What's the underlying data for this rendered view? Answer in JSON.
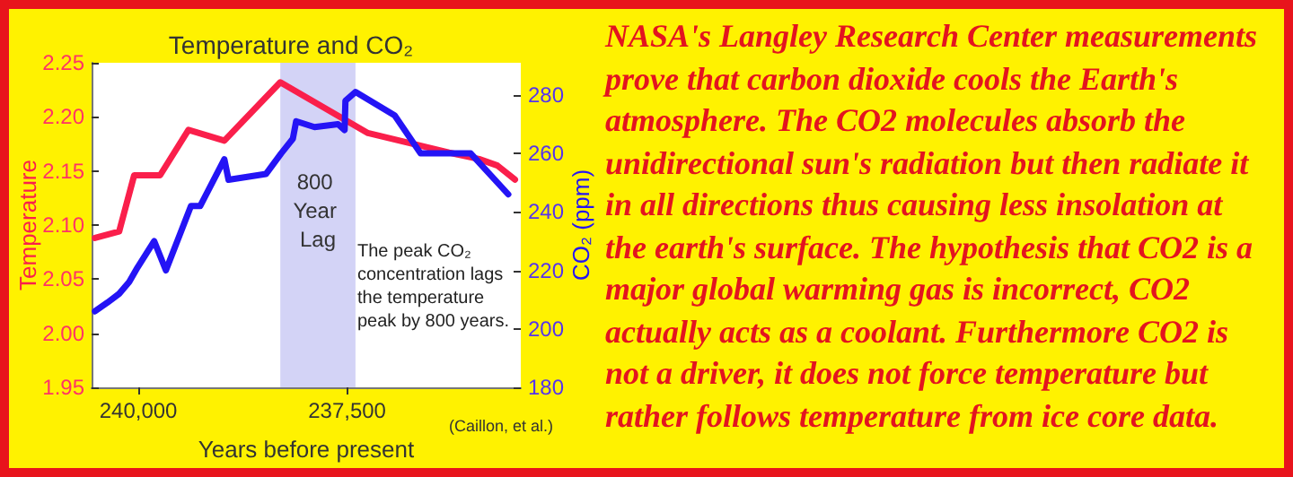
{
  "chart_data": {
    "type": "line",
    "title": "Temperature and CO₂",
    "xlabel": "Years before present",
    "ylabel": "Temperature",
    "y2label": "CO₂ (ppm)",
    "xlim": [
      240560,
      235420
    ],
    "xticks": [
      {
        "value": 240000,
        "label": "240,000"
      },
      {
        "value": 237500,
        "label": "237,500"
      }
    ],
    "ylim": [
      1.95,
      2.25
    ],
    "yticks": [
      1.95,
      {
        "value": 2,
        "label": "2.00"
      },
      2.05,
      {
        "value": 2.1,
        "label": "2.10"
      },
      2.15,
      {
        "value": 2.2,
        "label": "2.20"
      },
      2.25
    ],
    "y2lim": [
      180,
      291
    ],
    "y2ticks": [
      180,
      200,
      220,
      240,
      260,
      280
    ],
    "series": [
      {
        "color": "#fa1f4b",
        "x": [
          240520,
          240230,
          240050,
          239740,
          239400,
          238970,
          238300,
          237250,
          236280,
          235920,
          235700,
          235490
        ],
        "values": [
          2.088,
          2.094,
          2.146,
          2.146,
          2.188,
          2.178,
          2.232,
          2.185,
          2.167,
          2.161,
          2.155,
          2.142
        ]
      },
      {
        "color": "#2414f5",
        "axis": "y2",
        "x": [
          240520,
          240370,
          240230,
          240110,
          240010,
          239810,
          239670,
          239370,
          239260,
          238970,
          238920,
          238470,
          238290,
          238150,
          238110,
          237890,
          237610,
          237530,
          237520,
          237400,
          236930,
          236620,
          236020,
          235570
        ],
        "values": [
          206,
          209,
          212,
          216,
          221,
          230,
          220,
          242,
          242,
          258,
          251,
          253,
          260,
          265,
          271,
          269,
          270,
          268,
          278,
          281,
          273,
          260,
          260,
          246
        ]
      }
    ],
    "bands": [
      {
        "axis": "x",
        "from": 238300,
        "to": 237400,
        "label": "800 Year Lag",
        "color": "#d3d3f6"
      }
    ],
    "annotations": [
      "The peak CO₂ concentration lags the temperature peak by 800 years.",
      "(Caillon, et al.)",
      "NASA's Langley Research Center measurements prove that carbon dioxide cools the Earth's atmosphere. The CO2 molecules absorb the unidirectional sun's radiation but then radiate it in all directions thus causing less insolation at the earth's surface. The hypothesis that CO2 is a major global warming gas is incorrect, CO2 actually acts as a coolant. Furthermore CO2 is not a driver, it does not force temperature but rather follows temperature from ice core data."
    ]
  }
}
